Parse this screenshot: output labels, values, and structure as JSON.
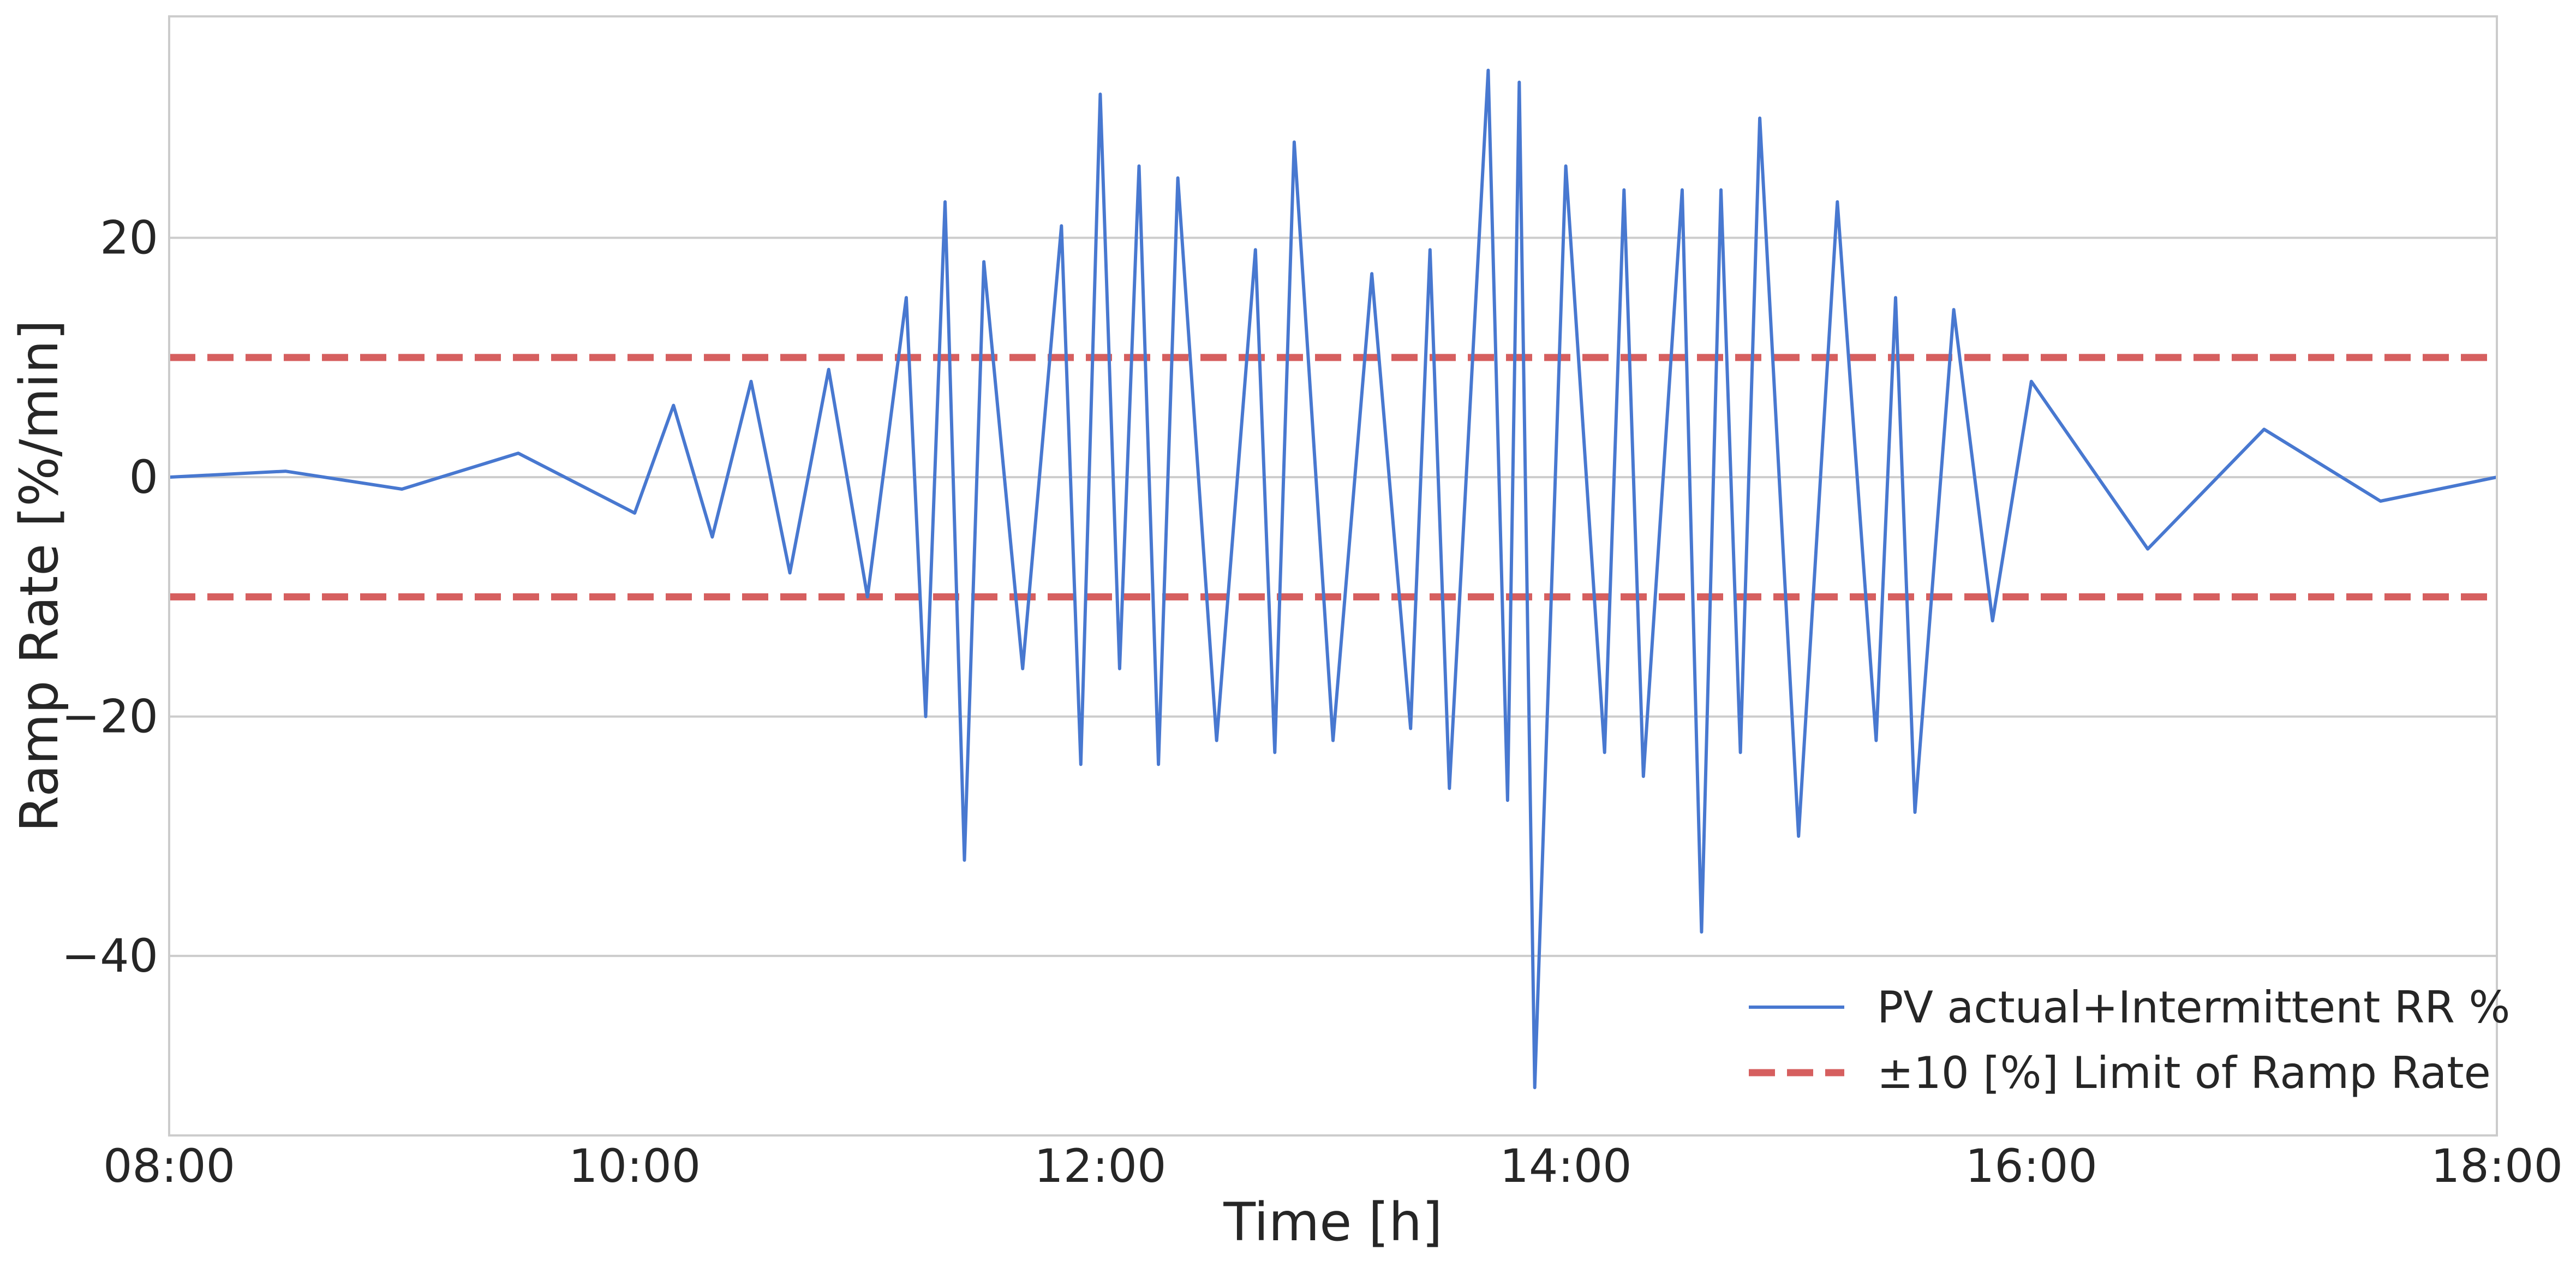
{
  "chart_data": {
    "type": "line",
    "title": "",
    "xlabel": "Time [h]",
    "ylabel": "Ramp Rate [%/min]",
    "xlim": [
      "08:00",
      "18:00"
    ],
    "ylim": [
      -55,
      38.5
    ],
    "xticks": [
      "08:00",
      "10:00",
      "12:00",
      "14:00",
      "16:00",
      "18:00"
    ],
    "yticks": [
      20,
      0,
      -20,
      -40
    ],
    "ytick_labels": [
      "20",
      "0",
      "−20",
      "−40"
    ],
    "grid": "horizontal",
    "legend": "lower-right",
    "series": [
      {
        "name": "PV actual+Intermittent RR %",
        "style": "solid",
        "color": "#4878d0",
        "x": [
          "08:00",
          "08:30",
          "09:00",
          "09:30",
          "10:00",
          "10:10",
          "10:20",
          "10:30",
          "10:40",
          "10:50",
          "11:00",
          "11:10",
          "11:15",
          "11:20",
          "11:25",
          "11:30",
          "11:40",
          "11:50",
          "11:55",
          "12:00",
          "12:05",
          "12:10",
          "12:15",
          "12:20",
          "12:30",
          "12:40",
          "12:45",
          "12:50",
          "13:00",
          "13:10",
          "13:20",
          "13:25",
          "13:30",
          "13:40",
          "13:45",
          "13:48",
          "13:52",
          "14:00",
          "14:10",
          "14:15",
          "14:20",
          "14:30",
          "14:35",
          "14:40",
          "14:45",
          "14:50",
          "15:00",
          "15:10",
          "15:20",
          "15:25",
          "15:30",
          "15:40",
          "15:50",
          "16:00",
          "16:30",
          "17:00",
          "17:30",
          "18:00"
        ],
        "y": [
          0,
          0.5,
          -1,
          2,
          -3,
          6,
          -5,
          8,
          -8,
          9,
          -10,
          15,
          -20,
          23,
          -32,
          18,
          -16,
          21,
          -24,
          32,
          -16,
          26,
          -24,
          25,
          -22,
          19,
          -23,
          28,
          -22,
          17,
          -21,
          19,
          -26,
          34,
          -27,
          33,
          -51,
          26,
          -23,
          24,
          -25,
          24,
          -38,
          24,
          -23,
          30,
          -30,
          23,
          -22,
          15,
          -28,
          14,
          -12,
          8,
          -6,
          4,
          -2,
          0
        ]
      },
      {
        "name": "±10 [%] Limit of Ramp Rate",
        "style": "dashed",
        "color": "#d65f5f",
        "y_constant": [
          10,
          -10
        ]
      }
    ]
  }
}
